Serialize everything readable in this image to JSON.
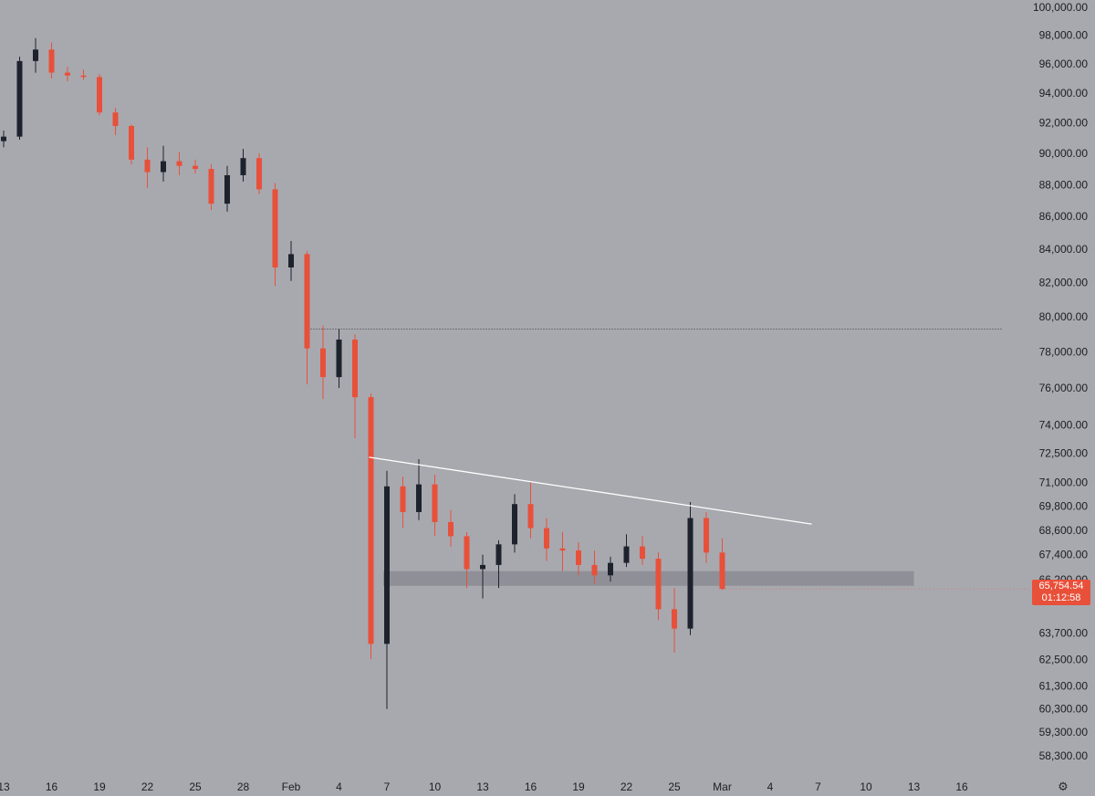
{
  "chart_data": {
    "type": "candlestick",
    "title": "",
    "xlabel": "",
    "ylabel": "",
    "y_tick_labels": [
      "100,000.00",
      "98,000.00",
      "96,000.00",
      "94,000.00",
      "92,000.00",
      "90,000.00",
      "88,000.00",
      "86,000.00",
      "84,000.00",
      "82,000.00",
      "80,000.00",
      "78,000.00",
      "76,000.00",
      "74,000.00",
      "72,500.00",
      "71,000.00",
      "69,800.00",
      "68,600.00",
      "67,400.00",
      "66,200.00",
      "63,700.00",
      "62,500.00",
      "61,300.00",
      "60,300.00",
      "59,300.00",
      "58,300.00"
    ],
    "x_tick_labels": [
      "13",
      "16",
      "19",
      "22",
      "25",
      "28",
      "Feb",
      "4",
      "7",
      "10",
      "13",
      "16",
      "19",
      "22",
      "25",
      "Mar",
      "4",
      "7",
      "10",
      "13",
      "16"
    ],
    "x_axis_range": [
      "Jan 13",
      "Mar 17"
    ],
    "y_axis_range": [
      57800,
      100300
    ],
    "y_scale": "log",
    "grid": false,
    "series": [
      {
        "ohlc_ordered": [
          "time",
          "open",
          "high",
          "low",
          "close"
        ],
        "candles": [
          [
            "Jan 13",
            90800,
            91500,
            90400,
            91100
          ],
          [
            "Jan 14",
            91100,
            96500,
            90900,
            96200
          ],
          [
            "Jan 15",
            96200,
            97800,
            95400,
            97000
          ],
          [
            "Jan 16",
            97000,
            97500,
            95000,
            95400
          ],
          [
            "Jan 17",
            95400,
            95800,
            94800,
            95200
          ],
          [
            "Jan 18",
            95200,
            95600,
            94900,
            95100
          ],
          [
            "Jan 19",
            95100,
            95300,
            92500,
            92700
          ],
          [
            "Jan 20",
            92700,
            93000,
            91200,
            91800
          ],
          [
            "Jan 21",
            91800,
            91900,
            89300,
            89600
          ],
          [
            "Jan 22",
            89600,
            90400,
            87800,
            88800
          ],
          [
            "Jan 23",
            88800,
            90500,
            88200,
            89500
          ],
          [
            "Jan 24",
            89500,
            90100,
            88600,
            89200
          ],
          [
            "Jan 25",
            89200,
            89600,
            88700,
            89000
          ],
          [
            "Jan 26",
            89000,
            89300,
            86400,
            86800
          ],
          [
            "Jan 27",
            86800,
            89200,
            86300,
            88600
          ],
          [
            "Jan 28",
            88600,
            90300,
            88200,
            89700
          ],
          [
            "Jan 29",
            89700,
            90000,
            87400,
            87700
          ],
          [
            "Jan 30",
            87700,
            88100,
            81800,
            82900
          ],
          [
            "Jan 31",
            82900,
            84500,
            82100,
            83700
          ],
          [
            "Feb 1",
            83700,
            83900,
            76200,
            78200
          ],
          [
            "Feb 2",
            78200,
            79500,
            75400,
            76600
          ],
          [
            "Feb 3",
            76600,
            79300,
            76000,
            78700
          ],
          [
            "Feb 4",
            78700,
            79000,
            73300,
            75500
          ],
          [
            "Feb 5",
            75500,
            75700,
            62500,
            63200
          ],
          [
            "Feb 6",
            63200,
            71600,
            60300,
            70800
          ],
          [
            "Feb 7",
            70800,
            71300,
            68700,
            69500
          ],
          [
            "Feb 8",
            69500,
            72200,
            69100,
            70900
          ],
          [
            "Feb 9",
            70900,
            71400,
            68300,
            69000
          ],
          [
            "Feb 10",
            69000,
            69600,
            67800,
            68300
          ],
          [
            "Feb 11",
            68300,
            68500,
            65800,
            66700
          ],
          [
            "Feb 12",
            66700,
            67400,
            65300,
            66900
          ],
          [
            "Feb 13",
            66900,
            68100,
            65800,
            67900
          ],
          [
            "Feb 14",
            67900,
            70400,
            67500,
            69900
          ],
          [
            "Feb 15",
            69900,
            71000,
            68200,
            68700
          ],
          [
            "Feb 16",
            68700,
            69200,
            67100,
            67700
          ],
          [
            "Feb 17",
            67700,
            68500,
            66600,
            67600
          ],
          [
            "Feb 18",
            67600,
            68000,
            66400,
            66900
          ],
          [
            "Feb 19",
            66900,
            67600,
            66000,
            66400
          ],
          [
            "Feb 20",
            66400,
            67300,
            66100,
            67000
          ],
          [
            "Feb 21",
            67000,
            68400,
            66800,
            67800
          ],
          [
            "Feb 22",
            67800,
            68300,
            66900,
            67200
          ],
          [
            "Feb 23",
            67200,
            67500,
            64300,
            64800
          ],
          [
            "Feb 24",
            64800,
            65800,
            62800,
            63900
          ],
          [
            "Feb 25",
            63900,
            70000,
            63600,
            69200
          ],
          [
            "Feb 26",
            69200,
            69500,
            67000,
            67500
          ],
          [
            "Feb 27",
            67500,
            68200,
            65700,
            65754.54
          ]
        ]
      }
    ],
    "annotations": [
      {
        "type": "horizontal-dotted-line",
        "price": 79300,
        "from": "Feb 1",
        "to_right_edge": true
      },
      {
        "type": "trendline",
        "from": [
          "Feb 5",
          72300
        ],
        "to": [
          "Mar 5",
          68900
        ],
        "color": "#ffffff"
      },
      {
        "type": "support-zone",
        "low": 65900,
        "high": 66600,
        "from": "Feb 6",
        "to": "Mar 11"
      }
    ],
    "last_price": {
      "value": "65,754.54",
      "countdown": "01:12:58"
    }
  },
  "colors": {
    "background": "#a8a9af",
    "down": "#e8503a",
    "up": "#1e222d",
    "zone": "#8b8c93",
    "trendline": "#ffffff"
  },
  "icons": {
    "settings": "gear-icon"
  }
}
